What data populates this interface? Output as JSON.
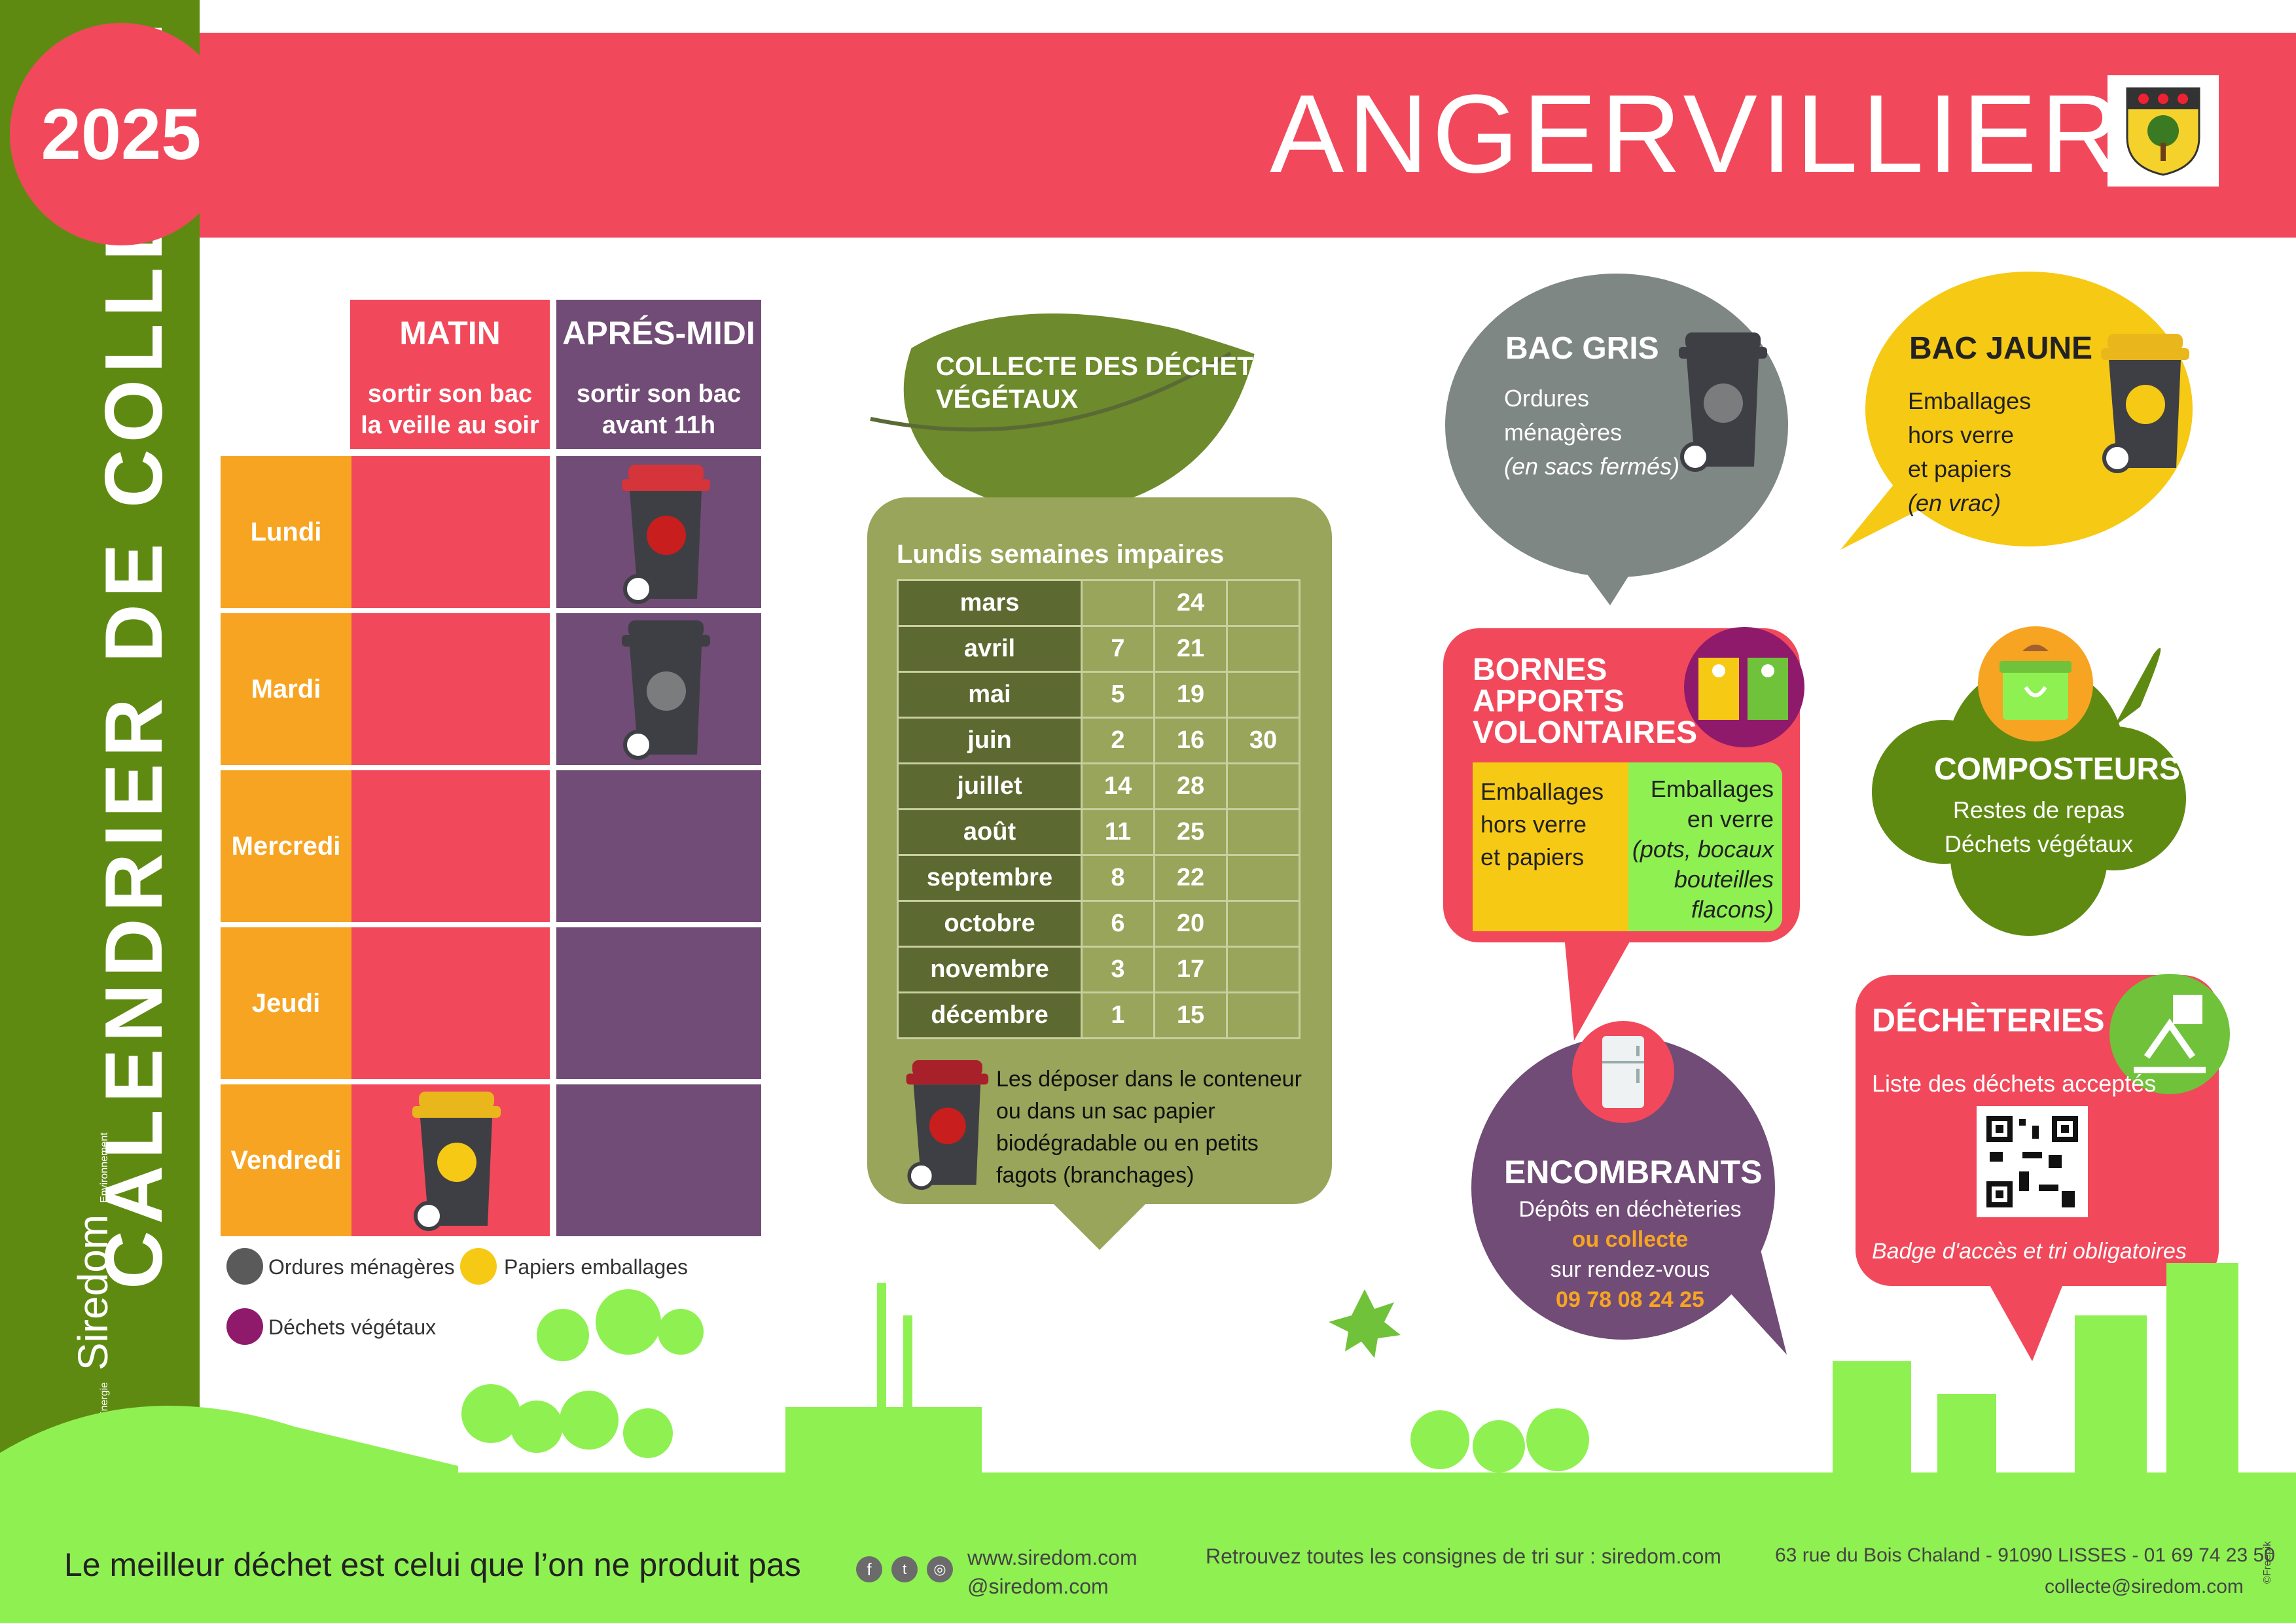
{
  "header": {
    "year": "2025",
    "city": "ANGERVILLIERS",
    "side_title": "CALENDRIER DE COLLECTE",
    "logo_small": "Déchets - Énergie",
    "logo_name": "Siredom",
    "logo_small2": "Environnement"
  },
  "schedule": {
    "columns": [
      {
        "title": "MATIN",
        "subtitle1": "sortir son bac",
        "subtitle2": "la veille au soir"
      },
      {
        "title": "APRÉS-MIDI",
        "subtitle1": "sortir son bac",
        "subtitle2": "avant 11h"
      }
    ],
    "days": [
      "Lundi",
      "Mardi",
      "Mercredi",
      "Jeudi",
      "Vendredi"
    ],
    "entries": [
      {
        "day": "Lundi",
        "slot": "APRÉS-MIDI",
        "bin": "red-bin-icon"
      },
      {
        "day": "Mardi",
        "slot": "APRÉS-MIDI",
        "bin": "grey-bin-icon"
      },
      {
        "day": "Vendredi",
        "slot": "MATIN",
        "bin": "yellow-bin-icon"
      }
    ]
  },
  "legend": [
    {
      "label": "Ordures ménagères",
      "color": "#5a5a5a"
    },
    {
      "label": "Papiers emballages",
      "color": "#f6c915"
    },
    {
      "label": "Déchets végétaux",
      "color": "#8f1a6b"
    }
  ],
  "vegetal": {
    "title1": "COLLECTE DES DÉCHETS",
    "title2": "VÉGÉTAUX",
    "subtitle": "Lundis semaines impaires",
    "rows": [
      {
        "month": "mars",
        "d1": "",
        "d2": "24",
        "d3": ""
      },
      {
        "month": "avril",
        "d1": "7",
        "d2": "21",
        "d3": ""
      },
      {
        "month": "mai",
        "d1": "5",
        "d2": "19",
        "d3": ""
      },
      {
        "month": "juin",
        "d1": "2",
        "d2": "16",
        "d3": "30"
      },
      {
        "month": "juillet",
        "d1": "14",
        "d2": "28",
        "d3": ""
      },
      {
        "month": "août",
        "d1": "11",
        "d2": "25",
        "d3": ""
      },
      {
        "month": "septembre",
        "d1": "8",
        "d2": "22",
        "d3": ""
      },
      {
        "month": "octobre",
        "d1": "6",
        "d2": "20",
        "d3": ""
      },
      {
        "month": "novembre",
        "d1": "3",
        "d2": "17",
        "d3": ""
      },
      {
        "month": "décembre",
        "d1": "1",
        "d2": "15",
        "d3": ""
      }
    ],
    "note1": "Les déposer dans le conteneur",
    "note2": "ou dans un sac papier",
    "note3": "biodégradable ou en petits",
    "note4": "fagots (branchages)"
  },
  "bac_gris": {
    "title": "BAC GRIS",
    "line1": "Ordures",
    "line2": "ménagères",
    "line3": "(en sacs fermés)"
  },
  "bac_jaune": {
    "title": "BAC JAUNE",
    "line1": "Emballages",
    "line2": "hors verre",
    "line3": "et papiers",
    "line4": "(en vrac)"
  },
  "bornes": {
    "title1": "BORNES",
    "title2": "APPORTS",
    "title3": "VOLONTAIRES",
    "left1": "Emballages",
    "left2": "hors verre",
    "left3": "et papiers",
    "right1": "Emballages",
    "right2": "en verre",
    "right3": "(pots, bocaux",
    "right4": "bouteilles",
    "right5": "flacons)"
  },
  "composteurs": {
    "title": "COMPOSTEURS",
    "line1": "Restes de repas",
    "line2": "Déchets végétaux"
  },
  "decheteries": {
    "title": "DÉCHÈTERIES",
    "line1": "Liste des déchets acceptés",
    "line2": "Badge d'accès et tri obligatoires"
  },
  "encombrants": {
    "title": "ENCOMBRANTS",
    "line1": "Dépôts en déchèteries",
    "line2": "ou collecte",
    "line3": "sur rendez-vous",
    "phone": "09 78 08 24 25"
  },
  "footer": {
    "slogan": "Le meilleur déchet est celui que l’on ne produit pas",
    "website": "www.siredom.com",
    "handle": "@siredom.com",
    "consignes": "Retrouvez toutes les consignes de tri sur : siredom.com",
    "address": "63 rue du Bois Chaland - 91090 LISSES - 01 69 74 23 50",
    "email": "collecte@siredom.com",
    "credit": "©Freepik"
  }
}
